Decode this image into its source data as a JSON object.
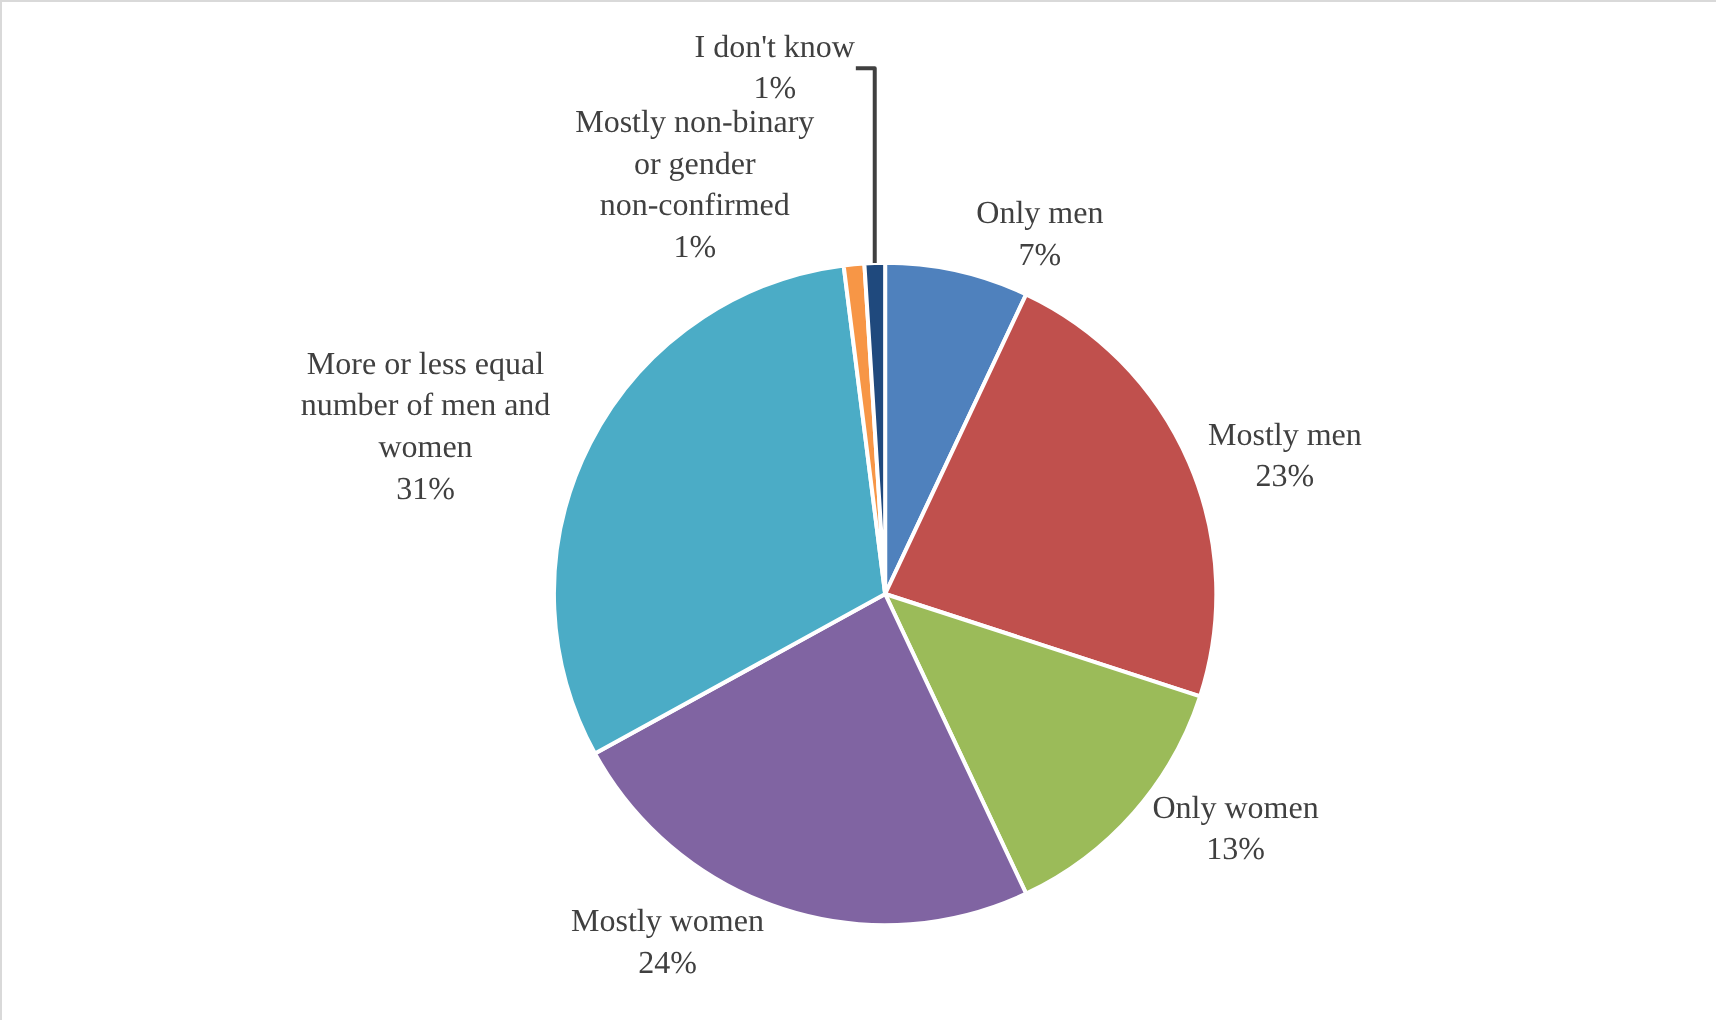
{
  "chart_data": {
    "type": "pie",
    "categories": [
      "Only men",
      "Mostly men",
      "Only women",
      "Mostly women",
      "More or less equal number of men and women",
      "Mostly non-binary or gender non-confirmed",
      "I don't know"
    ],
    "values": [
      7,
      23,
      13,
      24,
      31,
      1,
      1
    ],
    "value_labels": [
      "7%",
      "23%",
      "13%",
      "24%",
      "31%",
      "1%",
      "1%"
    ],
    "colors": [
      "#4f81bd",
      "#c0504d",
      "#9bbb59",
      "#8064a2",
      "#4bacc6",
      "#f79646",
      "#1f497d"
    ],
    "legend": false
  }
}
